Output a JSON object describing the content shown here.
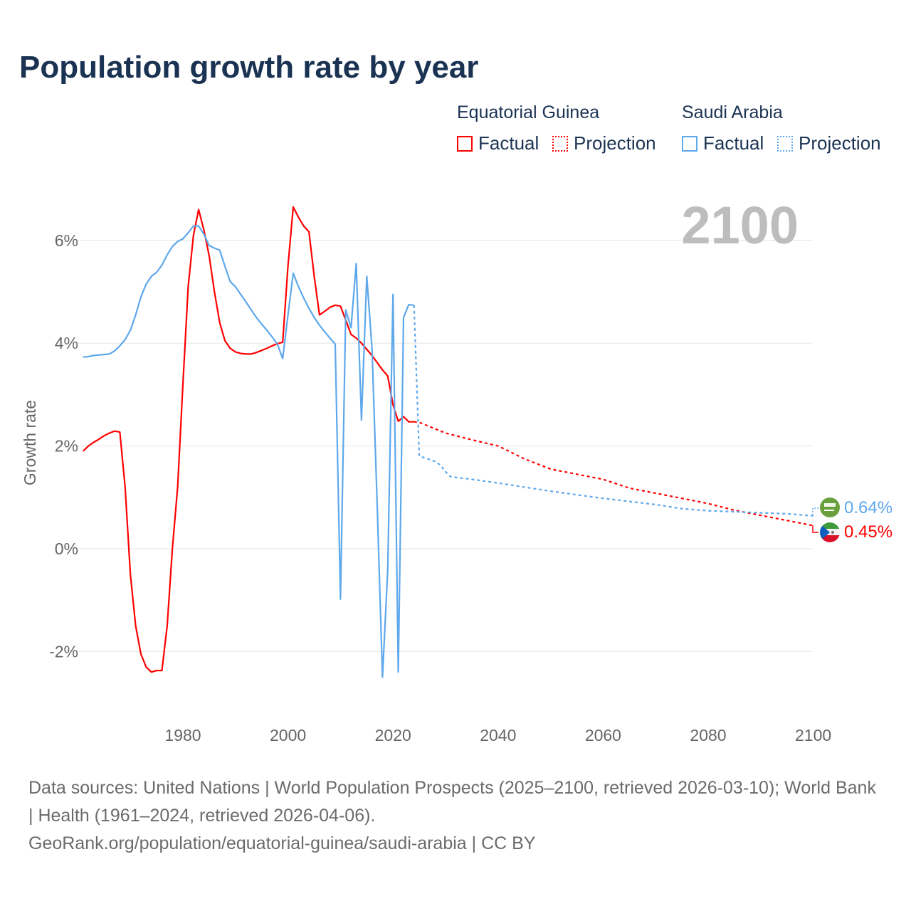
{
  "title": "Population growth rate by year",
  "legend": {
    "groups": [
      {
        "name": "Equatorial Guinea",
        "color": "#ff0000",
        "factual_label": "Factual",
        "projection_label": "Projection"
      },
      {
        "name": "Saudi Arabia",
        "color": "#5ea8ec",
        "factual_label": "Factual",
        "projection_label": "Projection"
      }
    ]
  },
  "current_year": "2100",
  "footer": {
    "sources": "Data sources: United Nations | World Population Prospects (2025–2100, retrieved 2026-03-10); World Bank | Health (1961–2024, retrieved 2026-04-06).",
    "credit": "GeoRank.org/population/equatorial-guinea/saudi-arabia | CC BY"
  },
  "end_labels": {
    "saudi": "0.64%",
    "eq_guinea": "0.45%"
  },
  "chart_data": {
    "type": "line",
    "title": "Population growth rate by year",
    "xlabel": "",
    "ylabel": "Growth rate",
    "xlim": [
      1961,
      2100
    ],
    "ylim": [
      -3.2,
      6.9
    ],
    "x_ticks": [
      1980,
      2000,
      2020,
      2040,
      2060,
      2080,
      2100
    ],
    "y_ticks": [
      {
        "v": 6,
        "label": "6%"
      },
      {
        "v": 4,
        "label": "4%"
      },
      {
        "v": 2,
        "label": "2%"
      },
      {
        "v": 0,
        "label": "0%"
      },
      {
        "v": -2,
        "label": "-2%"
      }
    ],
    "grid": true,
    "series": [
      {
        "name": "Equatorial Guinea",
        "kind": "factual",
        "color": "#ff0000",
        "start_year": 1961,
        "values": [
          1.9,
          2.0,
          2.07,
          2.13,
          2.2,
          2.25,
          2.29,
          2.27,
          1.2,
          -0.5,
          -1.5,
          -2.05,
          -2.3,
          -2.4,
          -2.37,
          -2.37,
          -1.5,
          0.0,
          1.2,
          3.2,
          5.1,
          6.1,
          6.6,
          6.2,
          5.7,
          5.0,
          4.4,
          4.05,
          3.9,
          3.83,
          3.8,
          3.79,
          3.79,
          3.82,
          3.86,
          3.9,
          3.95,
          3.99,
          4.02,
          5.5,
          6.65,
          6.45,
          6.28,
          6.17,
          5.3,
          4.55,
          4.62,
          4.7,
          4.74,
          4.72,
          4.45,
          4.17,
          4.1,
          4.0,
          3.88,
          3.76,
          3.62,
          3.48,
          3.36,
          2.8,
          2.48,
          2.57,
          2.47,
          2.47
        ]
      },
      {
        "name": "Equatorial Guinea",
        "kind": "projection",
        "color": "#ff0000",
        "x": [
          2024,
          2025,
          2030,
          2035,
          2040,
          2045,
          2050,
          2055,
          2060,
          2065,
          2070,
          2075,
          2080,
          2085,
          2090,
          2095,
          2100
        ],
        "values": [
          2.47,
          2.46,
          2.25,
          2.12,
          2.0,
          1.75,
          1.55,
          1.45,
          1.35,
          1.18,
          1.08,
          0.98,
          0.88,
          0.75,
          0.65,
          0.55,
          0.45
        ]
      },
      {
        "name": "Saudi Arabia",
        "kind": "factual",
        "color": "#5ea8ec",
        "start_year": 1961,
        "values": [
          3.73,
          3.74,
          3.76,
          3.77,
          3.78,
          3.79,
          3.85,
          3.95,
          4.07,
          4.25,
          4.55,
          4.9,
          5.15,
          5.3,
          5.38,
          5.52,
          5.72,
          5.88,
          5.98,
          6.03,
          6.15,
          6.28,
          6.28,
          6.12,
          5.9,
          5.85,
          5.81,
          5.5,
          5.2,
          5.1,
          4.95,
          4.8,
          4.65,
          4.5,
          4.37,
          4.25,
          4.12,
          3.98,
          3.7,
          4.55,
          5.36,
          5.1,
          4.88,
          4.68,
          4.5,
          4.35,
          4.22,
          4.1,
          3.98,
          -0.98,
          4.65,
          4.3,
          5.55,
          2.5,
          5.3,
          3.9,
          0.8,
          -2.5,
          -0.4,
          4.95,
          -2.4,
          4.5,
          4.75,
          4.74
        ]
      },
      {
        "name": "Saudi Arabia",
        "kind": "projection",
        "color": "#5ea8ec",
        "x": [
          2024,
          2025,
          2026,
          2028,
          2029,
          2030,
          2031,
          2035,
          2040,
          2045,
          2050,
          2055,
          2060,
          2065,
          2070,
          2075,
          2080,
          2085,
          2090,
          2095,
          2100
        ],
        "values": [
          4.74,
          1.8,
          1.77,
          1.7,
          1.63,
          1.5,
          1.4,
          1.35,
          1.28,
          1.2,
          1.12,
          1.05,
          0.98,
          0.92,
          0.86,
          0.78,
          0.74,
          0.72,
          0.7,
          0.68,
          0.64
        ]
      }
    ]
  }
}
